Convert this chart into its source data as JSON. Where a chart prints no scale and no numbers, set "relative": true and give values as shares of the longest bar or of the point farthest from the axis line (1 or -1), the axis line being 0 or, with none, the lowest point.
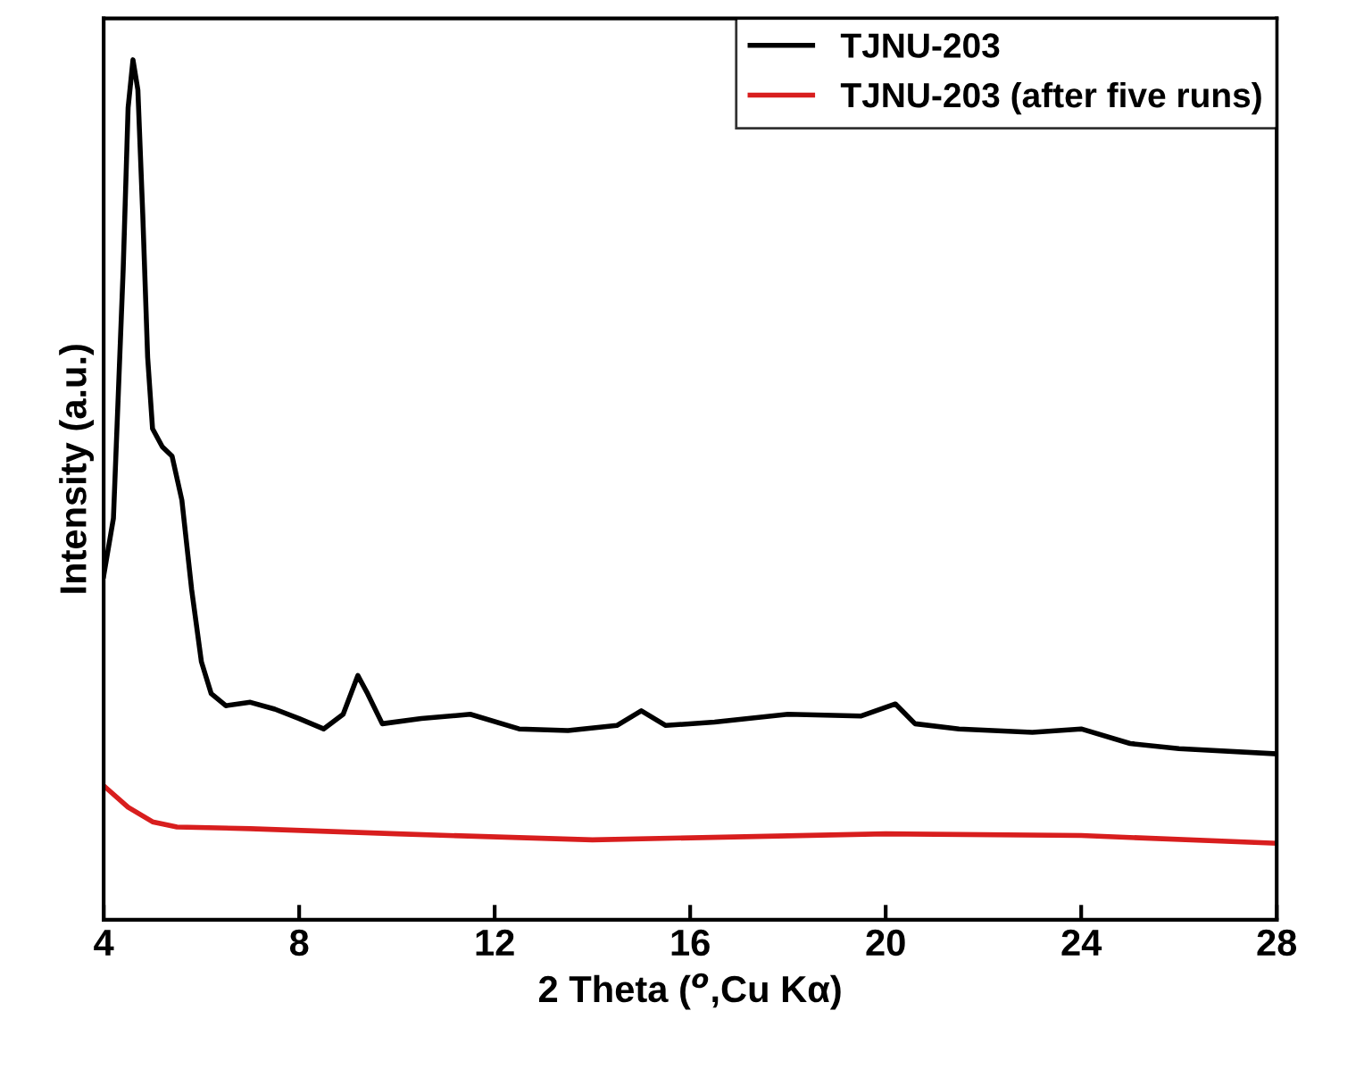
{
  "chart_data": {
    "type": "line",
    "relative": true,
    "xlabel": "2 Theta ($^{o}$,Cu Kα)",
    "ylabel": "Intensity (a.u.)",
    "xlim": [
      4,
      28
    ],
    "xticks": [
      4,
      8,
      12,
      16,
      20,
      24,
      28
    ],
    "tick_labels": "x",
    "legend": "top right",
    "grid": false,
    "series": [
      {
        "name": "TJNU-203",
        "color": "#000000",
        "x": [
          4.0,
          4.2,
          4.4,
          4.5,
          4.6,
          4.7,
          4.8,
          4.9,
          5.0,
          5.2,
          5.4,
          5.6,
          5.8,
          6.0,
          6.2,
          6.5,
          7.0,
          7.5,
          8.0,
          8.5,
          8.9,
          9.2,
          9.4,
          9.7,
          10.5,
          11.5,
          12.5,
          13.5,
          14.5,
          15.0,
          15.5,
          16.5,
          18.0,
          19.5,
          20.2,
          20.6,
          21.5,
          23.0,
          24.0,
          25.0,
          26.0,
          28.0
        ],
        "values": [
          0.4,
          0.467,
          0.757,
          0.944,
          1.0,
          0.965,
          0.82,
          0.654,
          0.571,
          0.55,
          0.539,
          0.488,
          0.384,
          0.3,
          0.263,
          0.249,
          0.253,
          0.245,
          0.234,
          0.222,
          0.239,
          0.284,
          0.263,
          0.228,
          0.234,
          0.239,
          0.222,
          0.22,
          0.226,
          0.243,
          0.226,
          0.23,
          0.239,
          0.237,
          0.251,
          0.228,
          0.222,
          0.218,
          0.222,
          0.205,
          0.199,
          0.193
        ]
      },
      {
        "name": "TJNU-203 (after five runs)",
        "color": "#d81e1e",
        "x": [
          4.0,
          4.5,
          5.0,
          5.5,
          7.0,
          10.0,
          14.0,
          20.0,
          24.0,
          28.0
        ],
        "values": [
          0.156,
          0.131,
          0.114,
          0.108,
          0.106,
          0.1,
          0.093,
          0.1,
          0.098,
          0.089
        ]
      }
    ]
  }
}
